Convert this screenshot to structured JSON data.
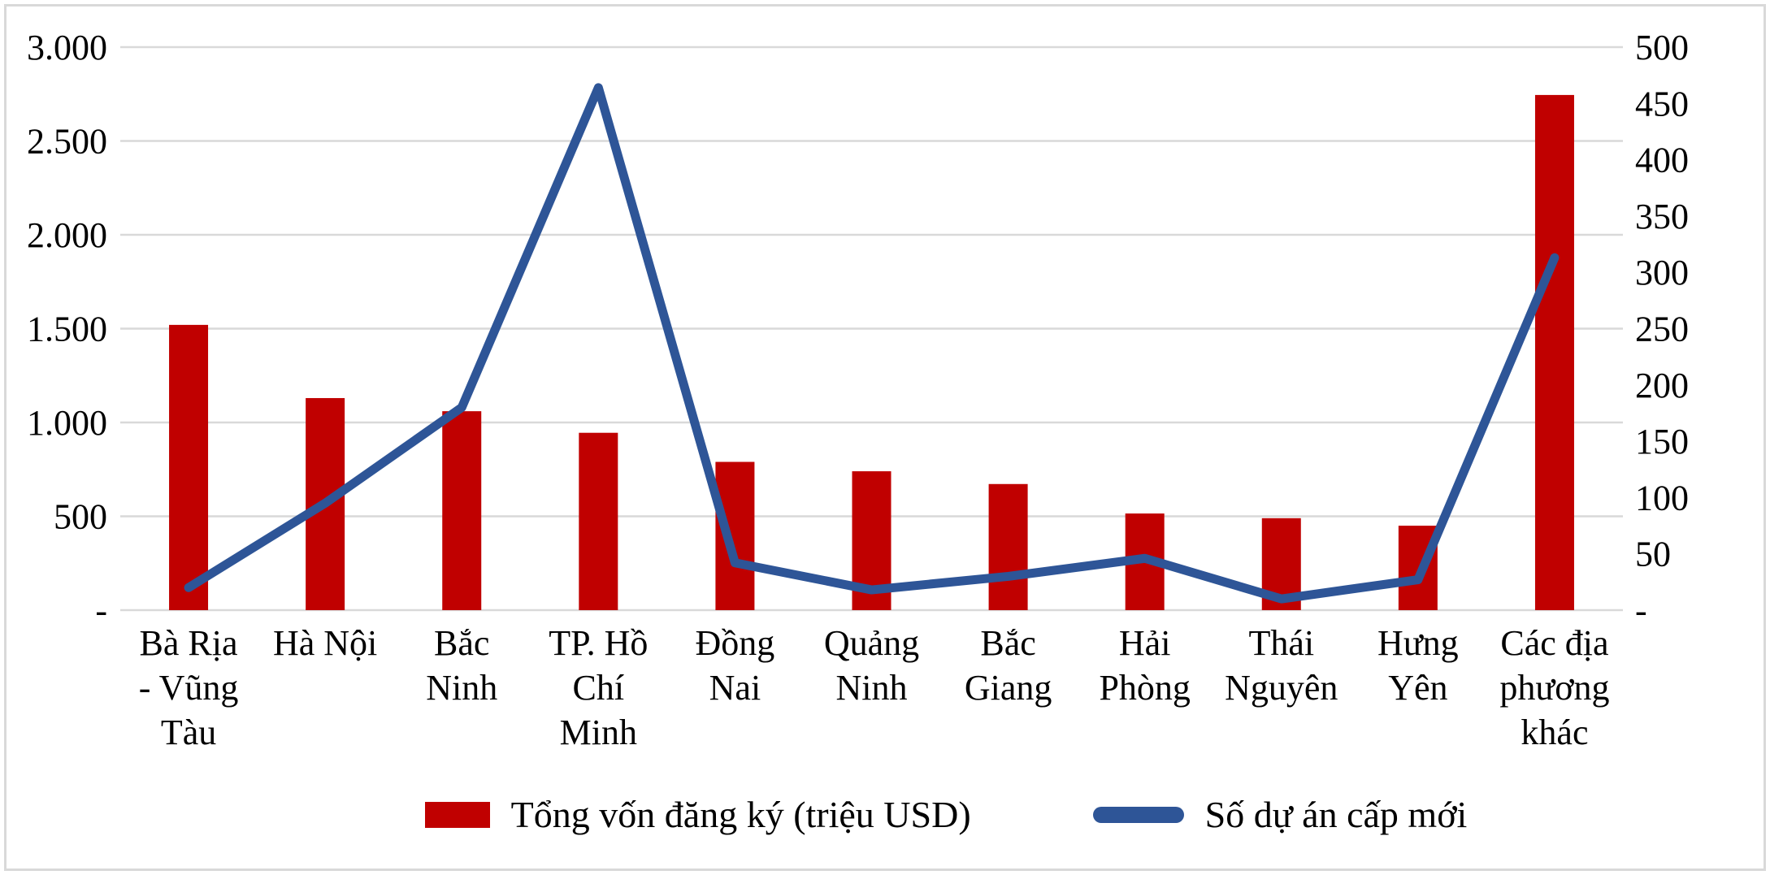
{
  "chart_data": {
    "type": "combo-bar-line",
    "title": "",
    "categories": [
      "Bà Rịa - Vũng Tàu",
      "Hà Nội",
      "Bắc Ninh",
      "TP. Hồ Chí Minh",
      "Đồng Nai",
      "Quảng Ninh",
      "Bắc Giang",
      "Hải Phòng",
      "Thái Nguyên",
      "Hưng Yên",
      "Các địa phương khác"
    ],
    "category_label_lines": [
      [
        "Bà Rịa",
        "- Vũng",
        "Tàu"
      ],
      [
        "Hà Nội"
      ],
      [
        "Bắc",
        "Ninh"
      ],
      [
        "TP. Hồ",
        "Chí",
        "Minh"
      ],
      [
        "Đồng",
        "Nai"
      ],
      [
        "Quảng",
        "Ninh"
      ],
      [
        "Bắc",
        "Giang"
      ],
      [
        "Hải",
        "Phòng"
      ],
      [
        "Thái",
        "Nguyên"
      ],
      [
        "Hưng",
        "Yên"
      ],
      [
        "Các địa",
        "phương",
        "khác"
      ]
    ],
    "series": [
      {
        "name": "Tổng vốn đăng ký (triệu USD)",
        "type": "bar",
        "axis": "left",
        "values": [
          1520,
          1130,
          1060,
          945,
          790,
          740,
          672,
          515,
          490,
          450,
          2745
        ]
      },
      {
        "name": "Số dự án cấp mới",
        "type": "line",
        "axis": "right",
        "values": [
          20,
          95,
          180,
          464,
          42,
          18,
          30,
          46,
          10,
          27,
          313
        ]
      }
    ],
    "left_axis": {
      "min": 0,
      "max": 3000,
      "step": 500,
      "tick_labels": [
        "-",
        "500",
        "1.000",
        "1.500",
        "2.000",
        "2.500",
        "3.000"
      ]
    },
    "right_axis": {
      "min": 0,
      "max": 500,
      "step": 50,
      "tick_labels": [
        "-",
        "50",
        "100",
        "150",
        "200",
        "250",
        "300",
        "350",
        "400",
        "450",
        "500"
      ]
    },
    "grid": true,
    "legend_position": "bottom"
  },
  "legend": {
    "bar_label": "Tổng vốn đăng ký (triệu USD)",
    "line_label": "Số dự án cấp mới"
  },
  "colors": {
    "bar": "#c00000",
    "line": "#2e5597",
    "grid": "#d9d9d9",
    "frame": "#d9d9d9",
    "text": "#000000",
    "background": "#ffffff"
  }
}
